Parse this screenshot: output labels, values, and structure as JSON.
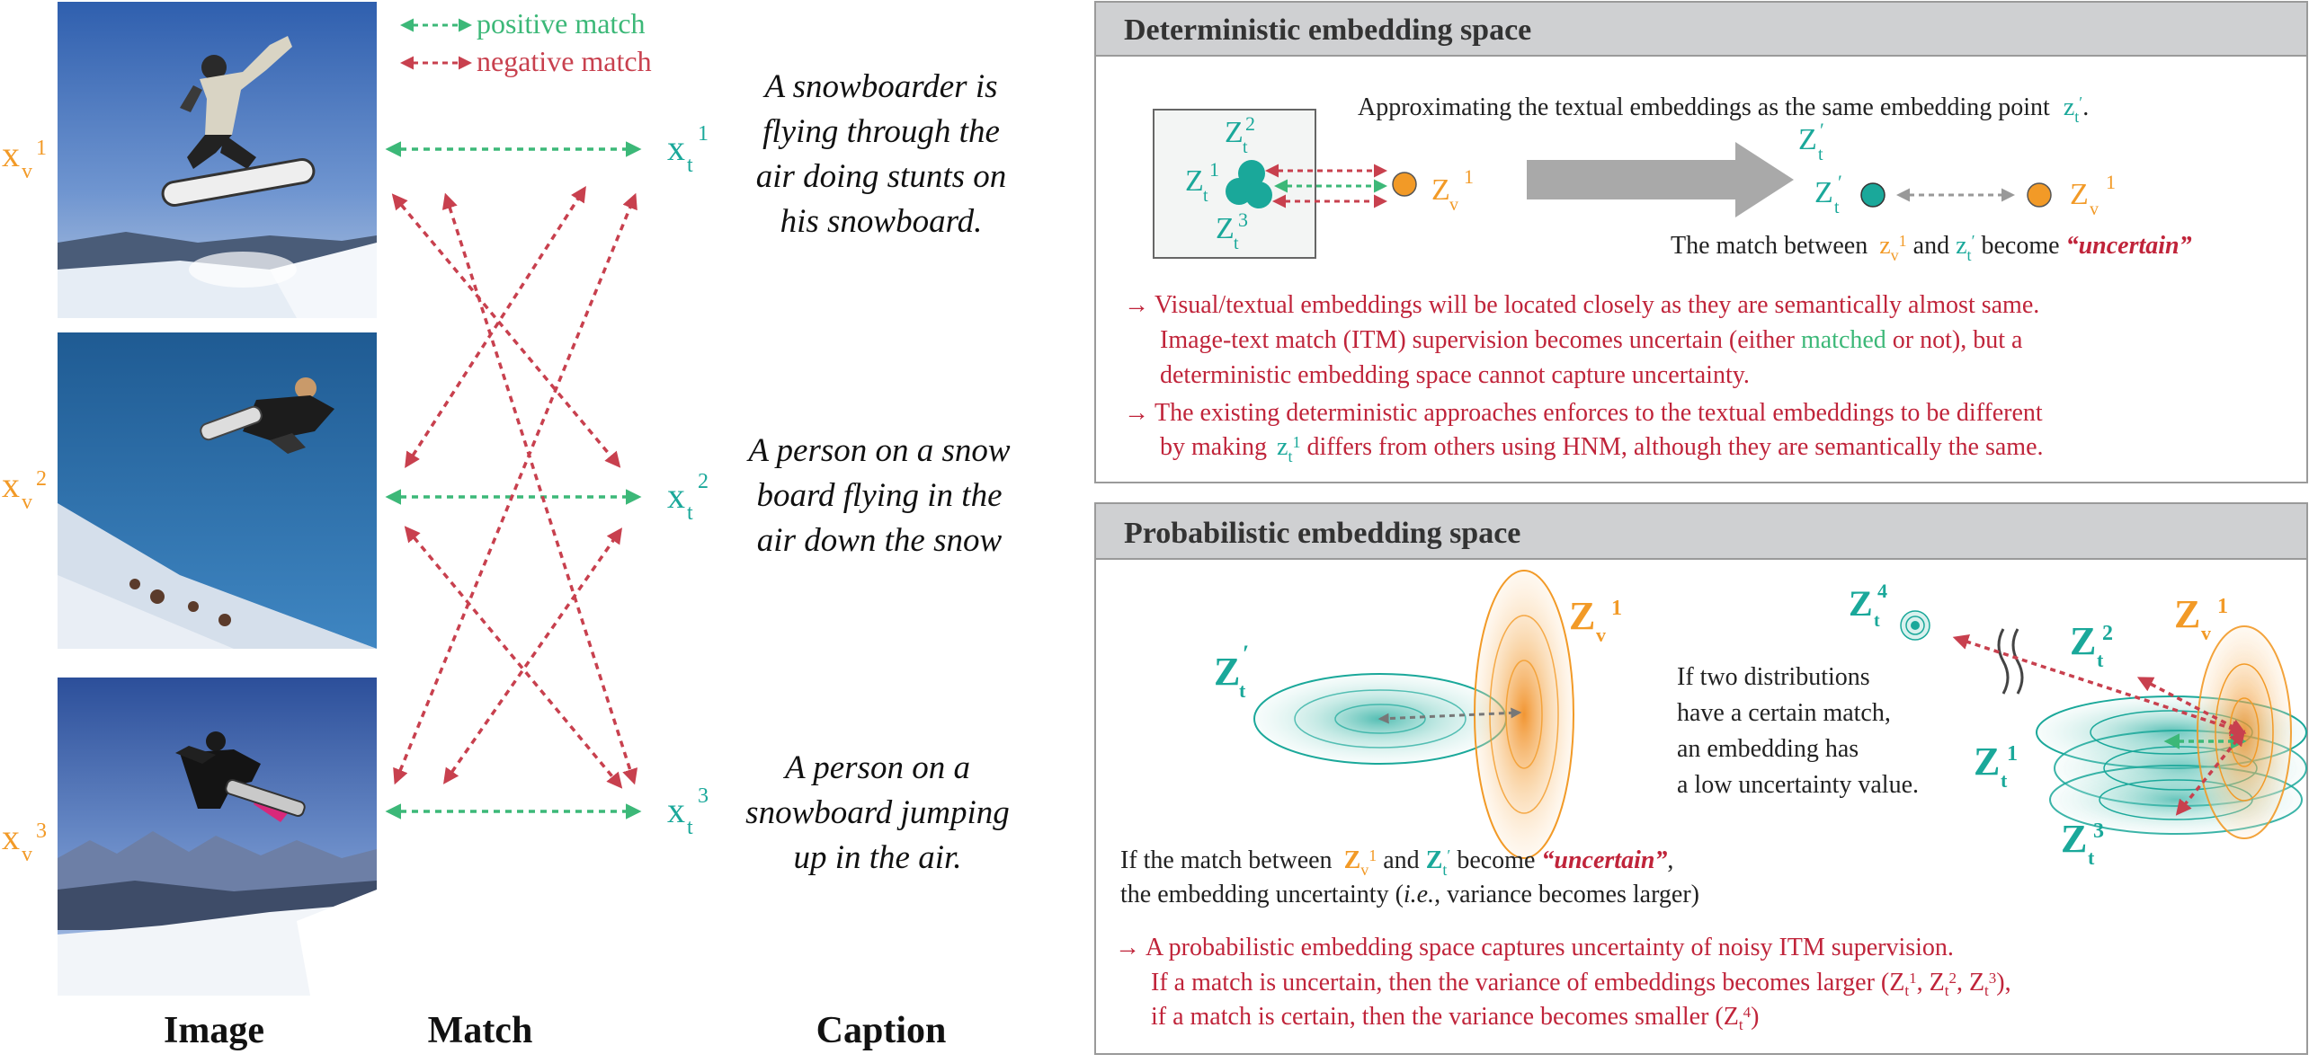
{
  "legend": {
    "positive": "positive match",
    "negative": "negative match"
  },
  "colors": {
    "positive": "#3cb878",
    "negative": "#c8404e",
    "visual": "#f29a27",
    "textual": "#1aa89a",
    "red_text": "#c0243a",
    "panel_header_bg": "#cfd0d2",
    "panel_border": "#9a9a9a"
  },
  "image_labels": [
    "x",
    "v",
    "1",
    "2",
    "3"
  ],
  "text_labels": [
    "x",
    "t"
  ],
  "captions": [
    [
      "A snowboarder is",
      "flying through the",
      "air doing stunts on",
      "his snowboard."
    ],
    [
      "A person on a snow",
      "board flying in the",
      "air down the snow"
    ],
    [
      "A person on a",
      "snowboard jumping",
      "up in the air."
    ]
  ],
  "column_labels": {
    "image": "Image",
    "match": "Match",
    "caption": "Caption"
  },
  "deterministic": {
    "title": "Deterministic embedding space",
    "approx_text": "Approximating the textual embeddings as the same embedding point",
    "z_symbol": "z",
    "Z_symbol": "Z",
    "prime": "′",
    "match_prefix": "The match between",
    "and_word": "and",
    "become_word": "become",
    "uncertain_word": "“uncertain”",
    "note1_lines": [
      "Visual/textual embeddings will be located closely as they are semantically almost same.",
      "Image-text match (ITM) supervision becomes uncertain (either",
      "matched",
      "or not), but a",
      "deterministic embedding space cannot capture uncertainty."
    ],
    "note2_lines": [
      "The existing deterministic approaches enforces to the textual embeddings to be different",
      "by making",
      "differs from others using HNM, although they are semantically the same."
    ],
    "arrow_glyph": "→"
  },
  "probabilistic": {
    "title": "Probabilistic embedding space",
    "certain_text": [
      "If two distributions",
      "have a certain match,",
      "an embedding has",
      "a low uncertainty value."
    ],
    "match_prefix": "If the match between",
    "and_word": "and",
    "become_word": "become",
    "uncertain_word": "“uncertain”",
    "comma": ",",
    "variance_prefix": "the embedding uncertainty (",
    "ie": "i.e.",
    "variance_suffix": ", variance becomes larger)",
    "note_lines": [
      "A probabilistic embedding space captures uncertainty of noisy ITM supervision.",
      "If a match is uncertain, then the variance of embeddings becomes larger (Z",
      "if a match is certain, then the variance becomes smaller (Z"
    ],
    "sups": [
      "1",
      "2",
      "3",
      "4"
    ],
    "arrow_glyph": "→"
  }
}
